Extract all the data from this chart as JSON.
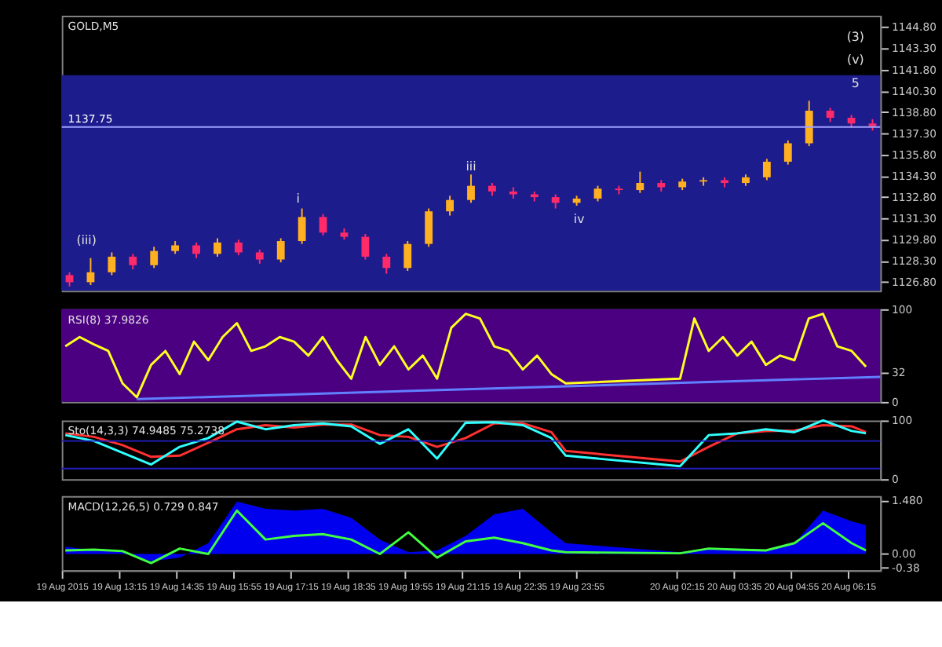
{
  "chart_data": [
    {
      "type": "candlestick",
      "title": "GOLD,M5",
      "categories": [
        null,
        null,
        null,
        null,
        null,
        null,
        null,
        null,
        null,
        null,
        null,
        null,
        null,
        null,
        null,
        null,
        null,
        null,
        null,
        null,
        null,
        null,
        null,
        null,
        null,
        null,
        null,
        null,
        null,
        null,
        null,
        null,
        null,
        null,
        null,
        null,
        null,
        null,
        null
      ],
      "ohlc": [
        [
          1127.3,
          1127.5,
          1126.5,
          1126.8
        ],
        [
          1126.8,
          1128.5,
          1126.6,
          1127.5
        ],
        [
          1127.5,
          1128.9,
          1127.3,
          1128.6
        ],
        [
          1128.6,
          1128.8,
          1127.7,
          1128.0
        ],
        [
          1128.0,
          1129.3,
          1127.8,
          1129.0
        ],
        [
          1129.0,
          1129.7,
          1128.8,
          1129.4
        ],
        [
          1129.4,
          1129.6,
          1128.5,
          1128.8
        ],
        [
          1128.8,
          1129.9,
          1128.6,
          1129.6
        ],
        [
          1129.6,
          1129.8,
          1128.7,
          1128.9
        ],
        [
          1128.9,
          1129.1,
          1128.1,
          1128.4
        ],
        [
          1128.4,
          1129.9,
          1128.2,
          1129.7
        ],
        [
          1129.7,
          1132.0,
          1129.5,
          1131.4
        ],
        [
          1131.4,
          1131.6,
          1130.1,
          1130.3
        ],
        [
          1130.3,
          1130.6,
          1129.8,
          1130.0
        ],
        [
          1130.0,
          1130.2,
          1128.4,
          1128.6
        ],
        [
          1128.6,
          1128.8,
          1127.4,
          1127.8
        ],
        [
          1127.8,
          1129.7,
          1127.6,
          1129.5
        ],
        [
          1129.5,
          1132.0,
          1129.3,
          1131.8
        ],
        [
          1131.8,
          1132.9,
          1131.5,
          1132.6
        ],
        [
          1132.6,
          1134.4,
          1132.4,
          1133.6
        ],
        [
          1133.6,
          1133.8,
          1132.9,
          1133.2
        ],
        [
          1133.2,
          1133.5,
          1132.7,
          1133.0
        ],
        [
          1133.0,
          1133.2,
          1132.5,
          1132.8
        ],
        [
          1132.8,
          1133.0,
          1132.0,
          1132.4
        ],
        [
          1132.4,
          1132.9,
          1132.2,
          1132.7
        ],
        [
          1132.7,
          1133.6,
          1132.5,
          1133.4
        ],
        [
          1133.4,
          1133.6,
          1133.0,
          1133.3
        ],
        [
          1133.3,
          1134.6,
          1133.1,
          1133.8
        ],
        [
          1133.8,
          1134.0,
          1133.2,
          1133.5
        ],
        [
          1133.5,
          1134.1,
          1133.3,
          1133.9
        ],
        [
          1133.9,
          1134.2,
          1133.6,
          1134.0
        ],
        [
          1134.0,
          1134.2,
          1133.5,
          1133.8
        ],
        [
          1133.8,
          1134.4,
          1133.6,
          1134.2
        ],
        [
          1134.2,
          1135.5,
          1134.0,
          1135.3
        ],
        [
          1135.3,
          1136.8,
          1135.1,
          1136.6
        ],
        [
          1136.6,
          1139.6,
          1136.4,
          1138.9
        ],
        [
          1138.9,
          1139.1,
          1138.1,
          1138.4
        ],
        [
          1138.4,
          1138.6,
          1137.7,
          1138.0
        ],
        [
          1138.0,
          1138.3,
          1137.5,
          1137.8
        ]
      ],
      "colors": [
        "#ff2a6a",
        "#ffb020",
        "#ffb020",
        "#ff2a6a",
        "#ffb020",
        "#ffb020",
        "#ff2a6a",
        "#ffb020",
        "#ff2a6a",
        "#ff2a6a",
        "#ffb020",
        "#ffb020",
        "#ff2a6a",
        "#ff2a6a",
        "#ff2a6a",
        "#ff2a6a",
        "#ffb020",
        "#ffb020",
        "#ffb020",
        "#ffb020",
        "#ff2a6a",
        "#ff2a6a",
        "#ff2a6a",
        "#ff2a6a",
        "#ffb020",
        "#ffb020",
        "#ff2a6a",
        "#ffb020",
        "#ff2a6a",
        "#ffb020",
        "#ffb020",
        "#ff2a6a",
        "#ffb020",
        "#ffb020",
        "#ffb020",
        "#ffb020",
        "#ff2a6a",
        "#ff2a6a",
        "#ff2a6a"
      ],
      "ylim": [
        1126.2,
        1145.6
      ],
      "yticks": [
        {
          "value": 1126.8,
          "label": "1126.80"
        },
        {
          "value": 1128.3,
          "label": "1128.30"
        },
        {
          "value": 1129.8,
          "label": "1129.80"
        },
        {
          "value": 1131.3,
          "label": "1131.30"
        },
        {
          "value": 1132.8,
          "label": "1132.80"
        },
        {
          "value": 1134.3,
          "label": "1134.30"
        },
        {
          "value": 1135.8,
          "label": "1135.80"
        },
        {
          "value": 1137.3,
          "label": "1137.30"
        },
        {
          "value": 1138.8,
          "label": "1138.80"
        },
        {
          "value": 1140.3,
          "label": "1140.30"
        },
        {
          "value": 1141.8,
          "label": "1141.80"
        },
        {
          "value": 1143.3,
          "label": "1143.30"
        },
        {
          "value": 1144.8,
          "label": "1144.80"
        }
      ],
      "tick_labels": "y",
      "bands": [
        {
          "axis": "y",
          "from": 1126.2,
          "to": 1141.4,
          "color": "#1c1c8c"
        }
      ],
      "ref_lines": [
        {
          "axis": "y",
          "value": 1137.75,
          "label": "1137.75",
          "color": "#a0a0ff"
        }
      ],
      "annotations": [
        "(iii)",
        "i",
        "iii",
        "iv",
        "5",
        "(v)",
        "(3)"
      ]
    },
    {
      "type": "line",
      "title": "RSI(8) 37.9826",
      "series": [
        {
          "color": "#ffff20",
          "x": [
            "2015-08-19T12:00",
            "2015-08-19T12:20",
            "2015-08-19T12:40",
            "2015-08-19T13:00",
            "2015-08-19T13:20",
            "2015-08-19T13:40",
            "2015-08-19T14:00",
            "2015-08-19T14:20",
            "2015-08-19T14:40",
            "2015-08-19T15:00",
            "2015-08-19T15:20",
            "2015-08-19T15:40",
            "2015-08-19T16:00",
            "2015-08-19T16:20",
            "2015-08-19T16:40",
            "2015-08-19T17:00",
            "2015-08-19T17:20",
            "2015-08-19T17:40",
            "2015-08-19T18:00",
            "2015-08-19T18:20",
            "2015-08-19T18:40",
            "2015-08-19T19:00",
            "2015-08-19T19:20",
            "2015-08-19T19:40",
            "2015-08-19T20:00",
            "2015-08-19T20:20",
            "2015-08-19T20:40",
            "2015-08-19T21:00",
            "2015-08-19T21:20",
            "2015-08-19T21:40",
            "2015-08-19T22:00",
            "2015-08-19T22:20",
            "2015-08-19T22:40",
            "2015-08-19T23:00",
            "2015-08-19T23:20",
            "2015-08-19T23:40",
            "2015-08-20T02:20",
            "2015-08-20T02:40",
            "2015-08-20T03:00",
            "2015-08-20T03:20",
            "2015-08-20T03:40",
            "2015-08-20T04:00",
            "2015-08-20T04:20",
            "2015-08-20T04:40",
            "2015-08-20T05:00",
            "2015-08-20T05:20",
            "2015-08-20T05:40",
            "2015-08-20T06:00",
            "2015-08-20T06:20",
            "2015-08-20T06:40"
          ],
          "values": [
            60,
            70,
            62,
            55,
            20,
            5,
            40,
            55,
            30,
            65,
            45,
            70,
            85,
            55,
            60,
            70,
            65,
            50,
            70,
            45,
            25,
            70,
            40,
            60,
            35,
            50,
            25,
            80,
            95,
            90,
            60,
            55,
            35,
            50,
            30,
            20,
            25,
            90,
            55,
            70,
            50,
            65,
            40,
            50,
            45,
            90,
            95,
            60,
            55,
            38
          ]
        },
        {
          "type": "line",
          "color": "#6080ff",
          "x": [
            "2015-08-19T13:40",
            "2015-08-20T07:00"
          ],
          "values": [
            3,
            27
          ]
        }
      ],
      "xlim": [
        "2015-08-19T11:55",
        "2015-08-20T07:00"
      ],
      "ylim": [
        0,
        100
      ],
      "yticks": [
        0,
        32,
        100
      ],
      "tick_labels": "y",
      "bands": [
        {
          "axis": "y",
          "from": 0,
          "to": 100,
          "color": "#4b0082"
        }
      ]
    },
    {
      "type": "line",
      "title": "Sto(14,3,3) 74.9485 75.2738",
      "x": [
        "2015-08-19T12:00",
        "2015-08-19T12:40",
        "2015-08-19T13:20",
        "2015-08-19T14:00",
        "2015-08-19T14:40",
        "2015-08-19T15:20",
        "2015-08-19T16:00",
        "2015-08-19T16:40",
        "2015-08-19T17:20",
        "2015-08-19T18:00",
        "2015-08-19T18:40",
        "2015-08-19T19:20",
        "2015-08-19T20:00",
        "2015-08-19T20:40",
        "2015-08-19T21:20",
        "2015-08-19T22:00",
        "2015-08-19T22:40",
        "2015-08-19T23:20",
        "2015-08-19T23:40",
        "2015-08-20T02:20",
        "2015-08-20T03:00",
        "2015-08-20T03:40",
        "2015-08-20T04:20",
        "2015-08-20T05:00",
        "2015-08-20T05:40",
        "2015-08-20T06:20",
        "2015-08-20T06:40"
      ],
      "series": [
        {
          "color": "#ff3030",
          "values": [
            78,
            72,
            58,
            38,
            40,
            62,
            85,
            92,
            88,
            93,
            93,
            75,
            72,
            55,
            70,
            95,
            95,
            80,
            48,
            30,
            55,
            78,
            82,
            83,
            92,
            90,
            80
          ]
        },
        {
          "color": "#30ffff",
          "values": [
            75,
            65,
            45,
            25,
            55,
            70,
            98,
            85,
            92,
            95,
            90,
            60,
            85,
            35,
            96,
            97,
            92,
            70,
            40,
            22,
            75,
            78,
            85,
            80,
            100,
            82,
            78
          ]
        }
      ],
      "xlim": [
        "2015-08-19T11:55",
        "2015-08-20T07:00"
      ],
      "ylim": [
        0,
        100
      ],
      "yticks": [
        0,
        100
      ],
      "tick_labels": "y",
      "ref_lines": [
        {
          "axis": "y",
          "value": 65,
          "color": "#2020c0"
        },
        {
          "axis": "y",
          "value": 18,
          "color": "#2020c0"
        }
      ]
    },
    {
      "type": "area",
      "title": "MACD(12,26,5) 0.729 0.847",
      "x": [
        "2015-08-19T12:00",
        "2015-08-19T12:40",
        "2015-08-19T13:20",
        "2015-08-19T14:00",
        "2015-08-19T14:40",
        "2015-08-19T15:20",
        "2015-08-19T16:00",
        "2015-08-19T16:40",
        "2015-08-19T17:20",
        "2015-08-19T18:00",
        "2015-08-19T18:40",
        "2015-08-19T19:20",
        "2015-08-19T20:00",
        "2015-08-19T20:40",
        "2015-08-19T21:20",
        "2015-08-19T22:00",
        "2015-08-19T22:40",
        "2015-08-19T23:20",
        "2015-08-19T23:40",
        "2015-08-20T02:20",
        "2015-08-20T03:00",
        "2015-08-20T03:40",
        "2015-08-20T04:20",
        "2015-08-20T05:00",
        "2015-08-20T05:40",
        "2015-08-20T06:20",
        "2015-08-20T06:40"
      ],
      "series": [
        {
          "type": "area",
          "color": "#0000ee",
          "values": [
            0.2,
            0.1,
            0.05,
            -0.2,
            -0.1,
            0.3,
            1.45,
            1.25,
            1.2,
            1.25,
            1.0,
            0.4,
            0.05,
            0.1,
            0.5,
            1.1,
            1.25,
            0.6,
            0.3,
            0.05,
            0.15,
            0.15,
            0.12,
            0.3,
            1.2,
            0.9,
            0.8
          ]
        },
        {
          "type": "line",
          "color": "#40ff40",
          "values": [
            0.1,
            0.12,
            0.08,
            -0.25,
            0.15,
            0.0,
            1.2,
            0.4,
            0.5,
            0.55,
            0.4,
            0.0,
            0.6,
            -0.1,
            0.35,
            0.45,
            0.3,
            0.1,
            0.05,
            0.02,
            0.15,
            0.12,
            0.1,
            0.3,
            0.85,
            0.3,
            0.1
          ]
        }
      ],
      "xlim": [
        "2015-08-19T11:55",
        "2015-08-20T07:00"
      ],
      "xticks": [
        {
          "value": "2015-08-19T11:55",
          "label": "19 Aug 2015"
        },
        {
          "value": "2015-08-19T13:15",
          "label": "19 Aug 13:15"
        },
        {
          "value": "2015-08-19T14:35",
          "label": "19 Aug 14:35"
        },
        {
          "value": "2015-08-19T15:55",
          "label": "19 Aug 15:55"
        },
        {
          "value": "2015-08-19T17:15",
          "label": "19 Aug 17:15"
        },
        {
          "value": "2015-08-19T18:35",
          "label": "19 Aug 18:35"
        },
        {
          "value": "2015-08-19T19:55",
          "label": "19 Aug 19:55"
        },
        {
          "value": "2015-08-19T21:15",
          "label": "19 Aug 21:15"
        },
        {
          "value": "2015-08-19T22:35",
          "label": "19 Aug 22:35"
        },
        {
          "value": "2015-08-19T23:55",
          "label": "19 Aug 23:55"
        },
        {
          "value": "2015-08-20T02:15",
          "label": "20 Aug 02:15"
        },
        {
          "value": "2015-08-20T03:35",
          "label": "20 Aug 03:35"
        },
        {
          "value": "2015-08-20T04:55",
          "label": "20 Aug 04:55"
        },
        {
          "value": "2015-08-20T06:15",
          "label": "20 Aug 06:15"
        }
      ],
      "ylim": [
        -0.45,
        1.6
      ],
      "yticks": [
        {
          "value": -0.38,
          "label": "-0.38"
        },
        {
          "value": 0,
          "label": "0.00"
        },
        {
          "value": 1.48,
          "label": "1.480"
        }
      ]
    }
  ]
}
